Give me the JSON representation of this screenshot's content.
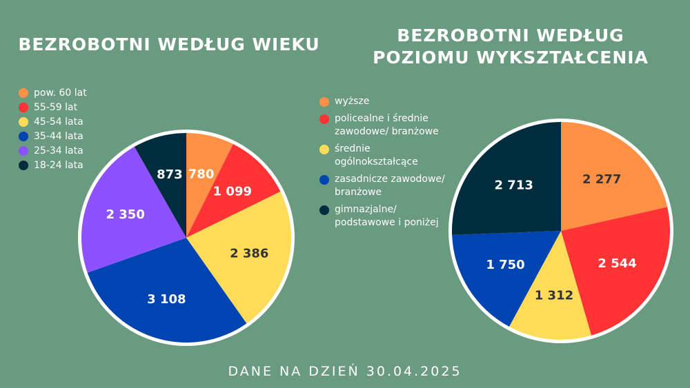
{
  "chart_data": [
    {
      "type": "pie",
      "title": "BEZROBOTNI WEDŁUG WIEKU",
      "slices": [
        {
          "label": "pow. 60 lat",
          "value": 780,
          "value_label": "780",
          "color": "#fe9145",
          "text_color": "#ffffff"
        },
        {
          "label": "55-59 lat",
          "value": 1099,
          "value_label": "1 099",
          "color": "#fe3333",
          "text_color": "#ffffff"
        },
        {
          "label": "45-54 lata",
          "value": 2386,
          "value_label": "2 386",
          "color": "#fedc5a",
          "text_color": "#333333"
        },
        {
          "label": "35-44 lata",
          "value": 3108,
          "value_label": "3 108",
          "color": "#0044b1",
          "text_color": "#ffffff"
        },
        {
          "label": "25-34 lata",
          "value": 2350,
          "value_label": "2 350",
          "color": "#8c52ff",
          "text_color": "#ffffff"
        },
        {
          "label": "18-24 lata",
          "value": 873,
          "value_label": "873",
          "color": "#002d3d",
          "text_color": "#ffffff"
        }
      ]
    },
    {
      "type": "pie",
      "title": "BEZROBOTNI WEDŁUG POZIOMU WYKSZTAŁCENIA",
      "title_lines": [
        "BEZROBOTNI WEDŁUG",
        "POZIOMU WYKSZTAŁCENIA"
      ],
      "slices": [
        {
          "label": "wyższe",
          "value": 2277,
          "value_label": "2 277",
          "color": "#fe9145",
          "text_color": "#333333"
        },
        {
          "label": "policealne i średnie zawodowe/ branżowe",
          "value": 2544,
          "value_label": "2 544",
          "color": "#fe3333",
          "text_color": "#ffffff"
        },
        {
          "label": "średnie ogólnokształcące",
          "value": 1312,
          "value_label": "1 312",
          "color": "#fedc5a",
          "text_color": "#333333"
        },
        {
          "label": "zasadnicze zawodowe/ branżowe",
          "value": 1750,
          "value_label": "1 750",
          "color": "#0044b1",
          "text_color": "#ffffff"
        },
        {
          "label": "gimnazjalne/ podstawowe i poniżej",
          "value": 2713,
          "value_label": "2 713",
          "color": "#002d3d",
          "text_color": "#ffffff"
        }
      ]
    }
  ],
  "footer": "DANE NA DZIEŃ 30.04.2025"
}
